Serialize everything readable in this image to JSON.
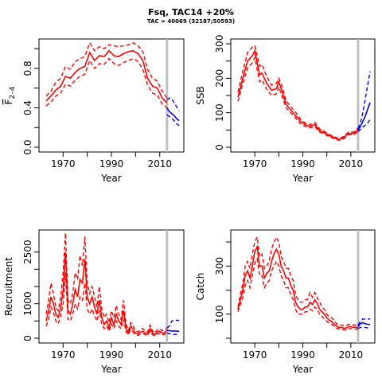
{
  "figure": {
    "title": "Fsq, TAC14 +20%",
    "subtitle": "TAC = 40069 (32187;50593)"
  },
  "colors": {
    "history": "#ff0000",
    "projection": "#0000ff",
    "ref_line": "#c0c0c0",
    "frame": "#000000"
  },
  "chart_data": [
    {
      "type": "line",
      "title": "",
      "xlabel": "Year",
      "ylabel": "F 2-4",
      "ylabel_main": "F",
      "ylabel_sub": "2–4",
      "xlim": [
        1962,
        2018
      ],
      "ylim": [
        0,
        1.05
      ],
      "xticks": [
        1970,
        1990,
        2010
      ],
      "yticks": [
        0.0,
        0.4,
        0.8
      ],
      "ytick_labels": [
        "0.0",
        "0.4",
        "0.8"
      ],
      "ytick_minor": [
        0.2,
        0.6,
        1.0
      ],
      "ref_year": 2013,
      "history": {
        "x": [
          1963,
          1965,
          1967,
          1969,
          1971,
          1973,
          1975,
          1977,
          1979,
          1981,
          1983,
          1985,
          1987,
          1989,
          1991,
          1993,
          1995,
          1997,
          1999,
          2001,
          2003,
          2005,
          2007,
          2009,
          2011,
          2013
        ],
        "median": [
          0.47,
          0.52,
          0.58,
          0.62,
          0.72,
          0.7,
          0.76,
          0.8,
          0.82,
          0.96,
          0.88,
          0.93,
          0.92,
          0.98,
          0.93,
          0.92,
          0.95,
          0.97,
          0.98,
          0.95,
          0.88,
          0.7,
          0.62,
          0.6,
          0.5,
          0.45
        ],
        "upper": [
          0.52,
          0.57,
          0.66,
          0.7,
          0.82,
          0.79,
          0.87,
          0.9,
          0.92,
          1.06,
          0.98,
          1.02,
          1.0,
          1.04,
          1.03,
          1.02,
          1.03,
          1.04,
          1.06,
          1.03,
          0.97,
          0.79,
          0.7,
          0.67,
          0.57,
          0.5
        ],
        "lower": [
          0.42,
          0.46,
          0.52,
          0.55,
          0.64,
          0.62,
          0.68,
          0.72,
          0.74,
          0.88,
          0.8,
          0.85,
          0.84,
          0.9,
          0.85,
          0.83,
          0.86,
          0.88,
          0.9,
          0.87,
          0.79,
          0.63,
          0.55,
          0.53,
          0.44,
          0.4
        ]
      },
      "projection": {
        "x": [
          2013,
          2014,
          2015,
          2016,
          2017,
          2018
        ],
        "median": [
          0.4,
          0.36,
          0.34,
          0.32,
          0.29,
          0.27
        ],
        "upper": [
          0.48,
          0.5,
          0.49,
          0.45,
          0.41,
          0.37
        ],
        "lower": [
          0.33,
          0.31,
          0.29,
          0.27,
          0.24,
          0.22
        ]
      }
    },
    {
      "type": "line",
      "title": "",
      "xlabel": "Year",
      "ylabel": "SSB",
      "xlim": [
        1962,
        2018
      ],
      "ylim": [
        0,
        300
      ],
      "xticks": [
        1970,
        1990,
        2010
      ],
      "yticks": [
        0,
        100,
        200,
        300
      ],
      "ytick_labels": [
        "0",
        "100",
        "200",
        "300"
      ],
      "ytick_minor": [
        50,
        150,
        250
      ],
      "ref_year": 2013,
      "history": {
        "x": [
          1963,
          1965,
          1967,
          1969,
          1970,
          1971,
          1972,
          1973,
          1975,
          1977,
          1979,
          1980,
          1981,
          1983,
          1985,
          1987,
          1989,
          1991,
          1993,
          1995,
          1997,
          1999,
          2001,
          2003,
          2005,
          2007,
          2009,
          2011,
          2013
        ],
        "median": [
          145,
          200,
          250,
          265,
          280,
          245,
          210,
          215,
          185,
          165,
          170,
          190,
          170,
          125,
          108,
          92,
          75,
          65,
          60,
          66,
          48,
          42,
          34,
          28,
          22,
          28,
          40,
          40,
          50
        ],
        "upper": [
          160,
          220,
          275,
          290,
          295,
          265,
          235,
          240,
          205,
          180,
          185,
          200,
          185,
          135,
          118,
          102,
          82,
          70,
          65,
          72,
          53,
          46,
          37,
          31,
          25,
          31,
          44,
          44,
          55
        ],
        "lower": [
          133,
          185,
          230,
          245,
          260,
          225,
          190,
          195,
          168,
          150,
          155,
          175,
          155,
          115,
          100,
          85,
          68,
          60,
          56,
          60,
          44,
          38,
          31,
          25,
          20,
          25,
          36,
          36,
          45
        ]
      },
      "projection": {
        "x": [
          2013,
          2014,
          2015,
          2016,
          2017,
          2018
        ],
        "median": [
          50,
          60,
          75,
          90,
          110,
          130
        ],
        "upper": [
          55,
          70,
          100,
          140,
          180,
          220
        ],
        "lower": [
          45,
          52,
          58,
          64,
          70,
          80
        ]
      }
    },
    {
      "type": "line",
      "title": "",
      "xlabel": "Year",
      "ylabel": "Recruitment",
      "xlim": [
        1962,
        2018
      ],
      "ylim": [
        0,
        3000
      ],
      "xticks": [
        1970,
        1990,
        2010
      ],
      "yticks": [
        0,
        1000,
        2500
      ],
      "ytick_labels": [
        "0",
        "1000",
        "2500"
      ],
      "ytick_minor": [
        500,
        1500,
        2000
      ],
      "ref_year": 2013,
      "history": {
        "x": [
          1963,
          1964,
          1965,
          1966,
          1967,
          1968,
          1969,
          1970,
          1971,
          1972,
          1973,
          1974,
          1975,
          1976,
          1977,
          1978,
          1979,
          1980,
          1981,
          1982,
          1983,
          1984,
          1985,
          1986,
          1987,
          1988,
          1989,
          1990,
          1991,
          1992,
          1993,
          1994,
          1995,
          1996,
          1997,
          1998,
          1999,
          2000,
          2001,
          2002,
          2003,
          2004,
          2005,
          2006,
          2007,
          2008,
          2009,
          2010,
          2011,
          2012,
          2013
        ],
        "median": [
          500,
          800,
          1200,
          1000,
          700,
          600,
          900,
          1400,
          2500,
          800,
          700,
          1000,
          1400,
          1200,
          1700,
          1600,
          2300,
          1200,
          1000,
          1200,
          900,
          700,
          1100,
          600,
          400,
          500,
          300,
          600,
          400,
          700,
          500,
          400,
          800,
          300,
          150,
          350,
          250,
          150,
          120,
          180,
          200,
          150,
          120,
          280,
          150,
          100,
          180,
          200,
          150,
          160,
          230
        ],
        "upper": [
          700,
          1100,
          1600,
          1300,
          900,
          800,
          1200,
          1900,
          3050,
          1100,
          1000,
          1300,
          1900,
          1700,
          2400,
          2100,
          2950,
          1600,
          1300,
          1500,
          1200,
          900,
          1500,
          850,
          600,
          700,
          450,
          800,
          600,
          950,
          700,
          550,
          1100,
          450,
          220,
          450,
          350,
          220,
          180,
          260,
          280,
          220,
          180,
          380,
          220,
          150,
          250,
          280,
          220,
          230,
          300
        ],
        "lower": [
          350,
          550,
          900,
          750,
          500,
          420,
          650,
          1000,
          1900,
          550,
          500,
          700,
          1000,
          850,
          1200,
          1100,
          1600,
          850,
          700,
          850,
          650,
          500,
          800,
          400,
          280,
          350,
          200,
          420,
          280,
          500,
          350,
          280,
          550,
          200,
          100,
          250,
          170,
          100,
          80,
          120,
          140,
          100,
          80,
          200,
          100,
          70,
          120,
          140,
          100,
          110,
          160
        ]
      },
      "projection": {
        "x": [
          2013,
          2014,
          2015,
          2016,
          2017,
          2018
        ],
        "median": [
          230,
          220,
          210,
          210,
          205,
          200
        ],
        "upper": [
          300,
          350,
          500,
          520,
          520,
          520
        ],
        "lower": [
          160,
          130,
          120,
          110,
          110,
          110
        ]
      }
    },
    {
      "type": "line",
      "title": "",
      "xlabel": "Year",
      "ylabel": "Catch",
      "xlim": [
        1962,
        2018
      ],
      "ylim": [
        0,
        430
      ],
      "xticks": [
        1970,
        1990,
        2010
      ],
      "yticks": [
        100,
        300
      ],
      "ytick_labels": [
        "100",
        "300"
      ],
      "ytick_minor": [
        0,
        200,
        400
      ],
      "ref_year": 2013,
      "history": {
        "x": [
          1963,
          1964,
          1965,
          1966,
          1967,
          1968,
          1969,
          1970,
          1971,
          1972,
          1973,
          1974,
          1975,
          1976,
          1977,
          1978,
          1979,
          1980,
          1981,
          1982,
          1983,
          1984,
          1985,
          1986,
          1987,
          1988,
          1989,
          1990,
          1991,
          1992,
          1993,
          1994,
          1995,
          1996,
          1997,
          1998,
          1999,
          2000,
          2001,
          2002,
          2003,
          2004,
          2005,
          2006,
          2007,
          2008,
          2009,
          2010,
          2011,
          2012,
          2013
        ],
        "median": [
          120,
          160,
          200,
          260,
          280,
          250,
          300,
          360,
          380,
          300,
          300,
          250,
          270,
          280,
          320,
          350,
          370,
          350,
          300,
          280,
          250,
          250,
          220,
          200,
          150,
          130,
          120,
          120,
          130,
          130,
          150,
          140,
          160,
          145,
          120,
          110,
          100,
          85,
          75,
          70,
          60,
          50,
          45,
          45,
          42,
          42,
          48,
          48,
          46,
          45,
          45
        ],
        "upper": [
          130,
          180,
          230,
          300,
          320,
          290,
          350,
          400,
          420,
          340,
          350,
          290,
          300,
          320,
          370,
          400,
          420,
          400,
          340,
          320,
          290,
          290,
          260,
          240,
          180,
          160,
          150,
          150,
          160,
          160,
          190,
          170,
          190,
          170,
          150,
          130,
          120,
          100,
          90,
          85,
          75,
          60,
          55,
          55,
          52,
          52,
          58,
          58,
          56,
          55,
          55
        ],
        "lower": [
          110,
          140,
          170,
          220,
          240,
          210,
          260,
          310,
          330,
          260,
          260,
          210,
          230,
          240,
          280,
          300,
          320,
          300,
          260,
          240,
          210,
          210,
          180,
          160,
          120,
          100,
          100,
          100,
          110,
          110,
          120,
          115,
          130,
          120,
          100,
          90,
          80,
          70,
          62,
          58,
          50,
          42,
          38,
          38,
          35,
          35,
          40,
          40,
          38,
          38,
          38
        ]
      },
      "projection": {
        "x": [
          2013,
          2014,
          2015,
          2016,
          2017,
          2018
        ],
        "median": [
          48,
          60,
          65,
          60,
          58,
          57
        ],
        "upper": [
          55,
          70,
          80,
          80,
          80,
          80
        ],
        "lower": [
          40,
          45,
          45,
          45,
          43,
          43
        ]
      }
    }
  ]
}
